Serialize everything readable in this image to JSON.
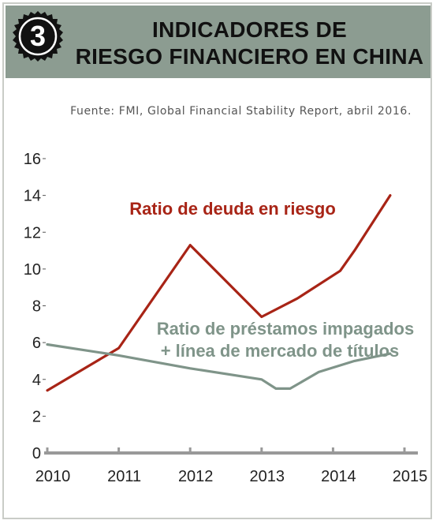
{
  "badge": {
    "number": "3"
  },
  "header": {
    "title_line1": "INDICADORES DE",
    "title_line2": "RIESGO FINANCIERO EN CHINA"
  },
  "source": "Fuente: FMI, Global Financial Stability Report, abril 2016.",
  "colors": {
    "header_bg": "#8c9c91",
    "debt_series": "#a82416",
    "loans_series": "#7f9489",
    "axis": "#999999"
  },
  "chart_data": {
    "type": "line",
    "title": "",
    "xlabel": "",
    "ylabel": "",
    "xlim": [
      2010,
      2015
    ],
    "ylim": [
      0,
      16
    ],
    "y_ticks": [
      0,
      2,
      4,
      6,
      8,
      10,
      12,
      14,
      16
    ],
    "x_ticks": [
      2010,
      2011,
      2012,
      2013,
      2014,
      2015
    ],
    "tick_labels_x": [
      "2010",
      "2011",
      "2012",
      "2013",
      "2014",
      "2015"
    ],
    "tick_labels_y": [
      "0",
      "2",
      "4",
      "6",
      "8",
      "10",
      "12",
      "14",
      "16"
    ],
    "grid": false,
    "series": [
      {
        "name": "Ratio de deuda en riesgo",
        "label_lines": [
          "Ratio de deuda en riesgo"
        ],
        "color": "#a82416",
        "x": [
          2010.0,
          2011.0,
          2012.0,
          2013.0,
          2013.5,
          2014.1,
          2014.3,
          2014.8
        ],
        "y": [
          3.4,
          5.7,
          11.3,
          7.4,
          8.4,
          9.9,
          11.0,
          14.0
        ]
      },
      {
        "name": "Ratio de préstamos impagados + línea de mercado de títulos",
        "label_lines": [
          "Ratio de préstamos impagados",
          "+ línea de mercado de títulos"
        ],
        "color": "#7f9489",
        "x": [
          2010.0,
          2011.0,
          2012.0,
          2013.0,
          2013.2,
          2013.4,
          2013.8,
          2014.3,
          2014.8
        ],
        "y": [
          5.9,
          5.3,
          4.6,
          4.0,
          3.5,
          3.5,
          4.4,
          5.0,
          5.4
        ]
      }
    ]
  }
}
